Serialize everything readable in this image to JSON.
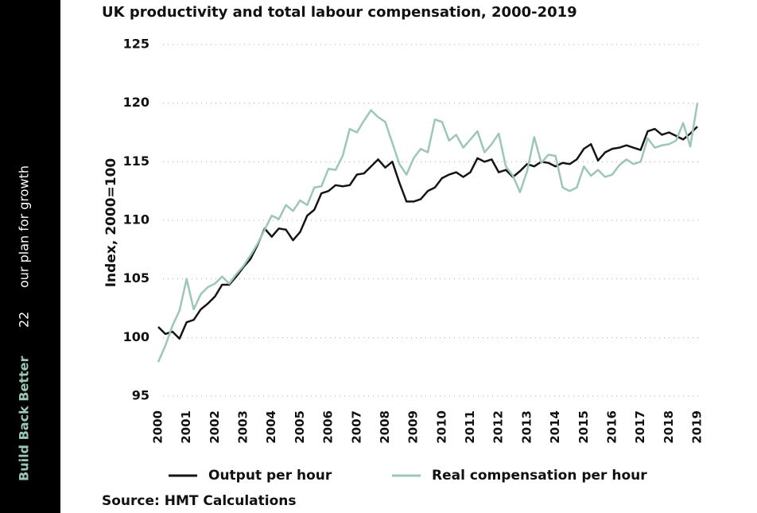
{
  "sidebar": {
    "brand": "Build Back Better",
    "page": 22,
    "tagline": "our plan for growth"
  },
  "chart_data": {
    "type": "line",
    "title": "UK productivity and total labour compensation, 2000-2019",
    "y_label": "Index, 2000=100",
    "source": "Source: HMT Calculations",
    "xlim": [
      2000,
      2019
    ],
    "xticks": [
      2000,
      2001,
      2002,
      2003,
      2004,
      2005,
      2006,
      2007,
      2008,
      2009,
      2010,
      2011,
      2012,
      2013,
      2014,
      2015,
      2016,
      2017,
      2018,
      2019
    ],
    "ylim": [
      95,
      125
    ],
    "yticks": [
      95,
      100,
      105,
      110,
      115,
      120,
      125
    ],
    "grid": true,
    "legend": "bottom",
    "x": [
      2000,
      2000.25,
      2000.5,
      2000.75,
      2001,
      2001.25,
      2001.5,
      2001.75,
      2002,
      2002.25,
      2002.5,
      2002.75,
      2003,
      2003.25,
      2003.5,
      2003.75,
      2004,
      2004.25,
      2004.5,
      2004.75,
      2005,
      2005.25,
      2005.5,
      2005.75,
      2006,
      2006.25,
      2006.5,
      2006.75,
      2007,
      2007.25,
      2007.5,
      2007.75,
      2008,
      2008.25,
      2008.5,
      2008.75,
      2009,
      2009.25,
      2009.5,
      2009.75,
      2010,
      2010.25,
      2010.5,
      2010.75,
      2011,
      2011.25,
      2011.5,
      2011.75,
      2012,
      2012.25,
      2012.5,
      2012.75,
      2013,
      2013.25,
      2013.5,
      2013.75,
      2014,
      2014.25,
      2014.5,
      2014.75,
      2015,
      2015.25,
      2015.5,
      2015.75,
      2016,
      2016.25,
      2016.5,
      2016.75,
      2017,
      2017.25,
      2017.5,
      2017.75,
      2018,
      2018.25,
      2018.5,
      2018.75,
      2019
    ],
    "series": [
      {
        "name": "Output per hour",
        "color": "#151515",
        "values": [
          100.9,
          100.3,
          100.5,
          99.9,
          101.3,
          101.5,
          102.4,
          102.9,
          103.5,
          104.5,
          104.5,
          105.2,
          106.0,
          106.7,
          107.9,
          109.3,
          108.6,
          109.3,
          109.2,
          108.3,
          109.0,
          110.4,
          110.9,
          112.3,
          112.5,
          113.0,
          112.9,
          113.0,
          113.9,
          114.0,
          114.6,
          115.2,
          114.5,
          115.0,
          113.2,
          111.6,
          111.6,
          111.8,
          112.5,
          112.8,
          113.6,
          113.9,
          114.1,
          113.7,
          114.1,
          115.3,
          115.0,
          115.2,
          114.1,
          114.3,
          113.7,
          114.2,
          114.8,
          114.6,
          115.0,
          114.9,
          114.6,
          114.9,
          114.8,
          115.2,
          116.1,
          116.5,
          115.1,
          115.8,
          116.1,
          116.2,
          116.4,
          116.2,
          116.0,
          117.6,
          117.8,
          117.3,
          117.5,
          117.2,
          116.9,
          117.4,
          118.0
        ]
      },
      {
        "name": "Real compensation per hour",
        "color": "#9cc7b4",
        "values": [
          97.9,
          99.3,
          101.0,
          102.3,
          105.0,
          102.4,
          103.7,
          104.3,
          104.6,
          105.2,
          104.6,
          105.4,
          106.1,
          107.0,
          108.0,
          109.2,
          110.4,
          110.1,
          111.3,
          110.8,
          111.7,
          111.3,
          112.8,
          112.9,
          114.4,
          114.3,
          115.5,
          117.8,
          117.5,
          118.5,
          119.4,
          118.8,
          118.4,
          116.6,
          114.8,
          113.9,
          115.3,
          116.1,
          115.8,
          118.6,
          118.4,
          116.8,
          117.3,
          116.2,
          116.9,
          117.6,
          115.8,
          116.5,
          117.4,
          114.6,
          113.8,
          112.4,
          114.2,
          117.1,
          114.9,
          115.6,
          115.5,
          112.8,
          112.5,
          112.8,
          114.6,
          113.8,
          114.3,
          113.7,
          113.9,
          114.7,
          115.2,
          114.8,
          115.0,
          117.0,
          116.2,
          116.4,
          116.5,
          116.8,
          118.3,
          116.3,
          120.0
        ]
      }
    ]
  }
}
